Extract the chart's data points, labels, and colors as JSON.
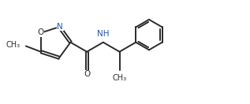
{
  "bg_color": "#ffffff",
  "line_color": "#2b2b2b",
  "N_color": "#2255aa",
  "O_color": "#2b2b2b",
  "line_width": 1.4,
  "font_size": 7.5,
  "figsize": [
    3.17,
    1.32
  ],
  "dpi": 100,
  "xlim": [
    0.0,
    9.5
  ],
  "ylim": [
    0.5,
    4.2
  ]
}
